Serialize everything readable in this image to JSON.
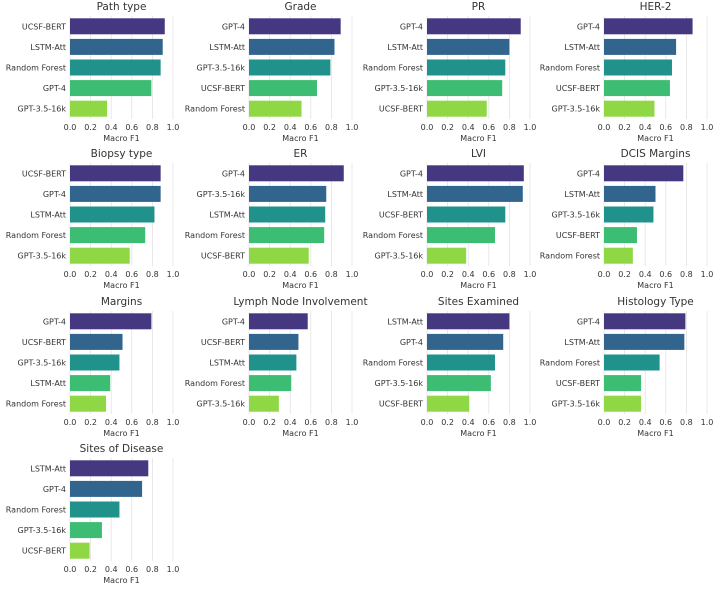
{
  "palette": [
    "#463781",
    "#31658e",
    "#21918c",
    "#3dbc73",
    "#8fd744"
  ],
  "chart_data": [
    {
      "type": "bar",
      "orientation": "horizontal",
      "title": "Path type",
      "categories": [
        "UCSF-BERT",
        "LSTM-Att",
        "Random Forest",
        "GPT-4",
        "GPT-3.5-16k"
      ],
      "values": [
        0.92,
        0.9,
        0.88,
        0.79,
        0.36
      ],
      "xlabel": "Macro F1",
      "xlim": [
        0,
        1
      ],
      "xticks": [
        "0.0",
        "0.2",
        "0.4",
        "0.6",
        "0.8",
        "1.0"
      ],
      "grid": true
    },
    {
      "type": "bar",
      "orientation": "horizontal",
      "title": "Grade",
      "categories": [
        "GPT-4",
        "LSTM-Att",
        "GPT-3.5-16k",
        "UCSF-BERT",
        "Random Forest"
      ],
      "values": [
        0.89,
        0.83,
        0.79,
        0.66,
        0.51
      ],
      "xlabel": "Macro F1",
      "xlim": [
        0,
        1
      ],
      "xticks": [
        "0.0",
        "0.2",
        "0.4",
        "0.6",
        "0.8",
        "1.0"
      ],
      "grid": true
    },
    {
      "type": "bar",
      "orientation": "horizontal",
      "title": "PR",
      "categories": [
        "GPT-4",
        "LSTM-Att",
        "Random Forest",
        "GPT-3.5-16k",
        "UCSF-BERT"
      ],
      "values": [
        0.91,
        0.8,
        0.76,
        0.73,
        0.58
      ],
      "xlabel": "Macro F1",
      "xlim": [
        0,
        1
      ],
      "xticks": [
        "0.0",
        "0.2",
        "0.4",
        "0.6",
        "0.8",
        "1.0"
      ],
      "grid": true
    },
    {
      "type": "bar",
      "orientation": "horizontal",
      "title": "HER-2",
      "categories": [
        "GPT-4",
        "LSTM-Att",
        "Random Forest",
        "UCSF-BERT",
        "GPT-3.5-16k"
      ],
      "values": [
        0.86,
        0.7,
        0.66,
        0.64,
        0.49
      ],
      "xlabel": "Macro F1",
      "xlim": [
        0,
        1
      ],
      "xticks": [
        "0.0",
        "0.2",
        "0.4",
        "0.6",
        "0.8",
        "1.0"
      ],
      "grid": true
    },
    {
      "type": "bar",
      "orientation": "horizontal",
      "title": "Biopsy type",
      "categories": [
        "UCSF-BERT",
        "GPT-4",
        "LSTM-Att",
        "Random Forest",
        "GPT-3.5-16k"
      ],
      "values": [
        0.88,
        0.88,
        0.82,
        0.73,
        0.58
      ],
      "xlabel": "Macro F1",
      "xlim": [
        0,
        1
      ],
      "xticks": [
        "0.0",
        "0.2",
        "0.4",
        "0.6",
        "0.8",
        "1.0"
      ],
      "grid": true
    },
    {
      "type": "bar",
      "orientation": "horizontal",
      "title": "ER",
      "categories": [
        "GPT-4",
        "GPT-3.5-16k",
        "LSTM-Att",
        "Random Forest",
        "UCSF-BERT"
      ],
      "values": [
        0.92,
        0.75,
        0.74,
        0.73,
        0.58
      ],
      "xlabel": "Macro F1",
      "xlim": [
        0,
        1
      ],
      "xticks": [
        "0.0",
        "0.2",
        "0.4",
        "0.6",
        "0.8",
        "1.0"
      ],
      "grid": true
    },
    {
      "type": "bar",
      "orientation": "horizontal",
      "title": "LVI",
      "categories": [
        "GPT-4",
        "LSTM-Att",
        "UCSF-BERT",
        "Random Forest",
        "GPT-3.5-16k"
      ],
      "values": [
        0.94,
        0.93,
        0.76,
        0.66,
        0.38
      ],
      "xlabel": "Macro F1",
      "xlim": [
        0,
        1
      ],
      "xticks": [
        "0.0",
        "0.2",
        "0.4",
        "0.6",
        "0.8",
        "1.0"
      ],
      "grid": true
    },
    {
      "type": "bar",
      "orientation": "horizontal",
      "title": "DCIS Margins",
      "categories": [
        "GPT-4",
        "LSTM-Att",
        "GPT-3.5-16k",
        "UCSF-BERT",
        "Random Forest"
      ],
      "values": [
        0.77,
        0.5,
        0.48,
        0.32,
        0.28
      ],
      "xlabel": "Macro F1",
      "xlim": [
        0,
        1
      ],
      "xticks": [
        "0.0",
        "0.2",
        "0.4",
        "0.6",
        "0.8",
        "1.0"
      ],
      "grid": true
    },
    {
      "type": "bar",
      "orientation": "horizontal",
      "title": "Margins",
      "categories": [
        "GPT-4",
        "UCSF-BERT",
        "GPT-3.5-16k",
        "LSTM-Att",
        "Random Forest"
      ],
      "values": [
        0.79,
        0.51,
        0.48,
        0.39,
        0.35
      ],
      "xlabel": "Macro F1",
      "xlim": [
        0,
        1
      ],
      "xticks": [
        "0.0",
        "0.2",
        "0.4",
        "0.6",
        "0.8",
        "1.0"
      ],
      "grid": true
    },
    {
      "type": "bar",
      "orientation": "horizontal",
      "title": "Lymph Node Involvement",
      "categories": [
        "GPT-4",
        "UCSF-BERT",
        "LSTM-Att",
        "Random Forest",
        "GPT-3.5-16k"
      ],
      "values": [
        0.57,
        0.48,
        0.46,
        0.41,
        0.29
      ],
      "xlabel": "Macro F1",
      "xlim": [
        0,
        1
      ],
      "xticks": [
        "0.0",
        "0.2",
        "0.4",
        "0.6",
        "0.8",
        "1.0"
      ],
      "grid": true
    },
    {
      "type": "bar",
      "orientation": "horizontal",
      "title": "Sites Examined",
      "categories": [
        "LSTM-Att",
        "GPT-4",
        "Random Forest",
        "GPT-3.5-16k",
        "UCSF-BERT"
      ],
      "values": [
        0.8,
        0.74,
        0.66,
        0.62,
        0.41
      ],
      "xlabel": "Macro F1",
      "xlim": [
        0,
        1
      ],
      "xticks": [
        "0.0",
        "0.2",
        "0.4",
        "0.6",
        "0.8",
        "1.0"
      ],
      "grid": true
    },
    {
      "type": "bar",
      "orientation": "horizontal",
      "title": "Histology Type",
      "categories": [
        "GPT-4",
        "LSTM-Att",
        "Random Forest",
        "UCSF-BERT",
        "GPT-3.5-16k"
      ],
      "values": [
        0.79,
        0.78,
        0.54,
        0.36,
        0.36
      ],
      "xlabel": "Macro F1",
      "xlim": [
        0,
        1
      ],
      "xticks": [
        "0.0",
        "0.2",
        "0.4",
        "0.6",
        "0.8",
        "1.0"
      ],
      "grid": true
    },
    {
      "type": "bar",
      "orientation": "horizontal",
      "title": "Sites of Disease",
      "categories": [
        "LSTM-Att",
        "GPT-4",
        "Random Forest",
        "GPT-3.5-16k",
        "UCSF-BERT"
      ],
      "values": [
        0.76,
        0.7,
        0.48,
        0.31,
        0.19
      ],
      "xlabel": "Macro F1",
      "xlim": [
        0,
        1
      ],
      "xticks": [
        "0.0",
        "0.2",
        "0.4",
        "0.6",
        "0.8",
        "1.0"
      ],
      "grid": true
    }
  ]
}
